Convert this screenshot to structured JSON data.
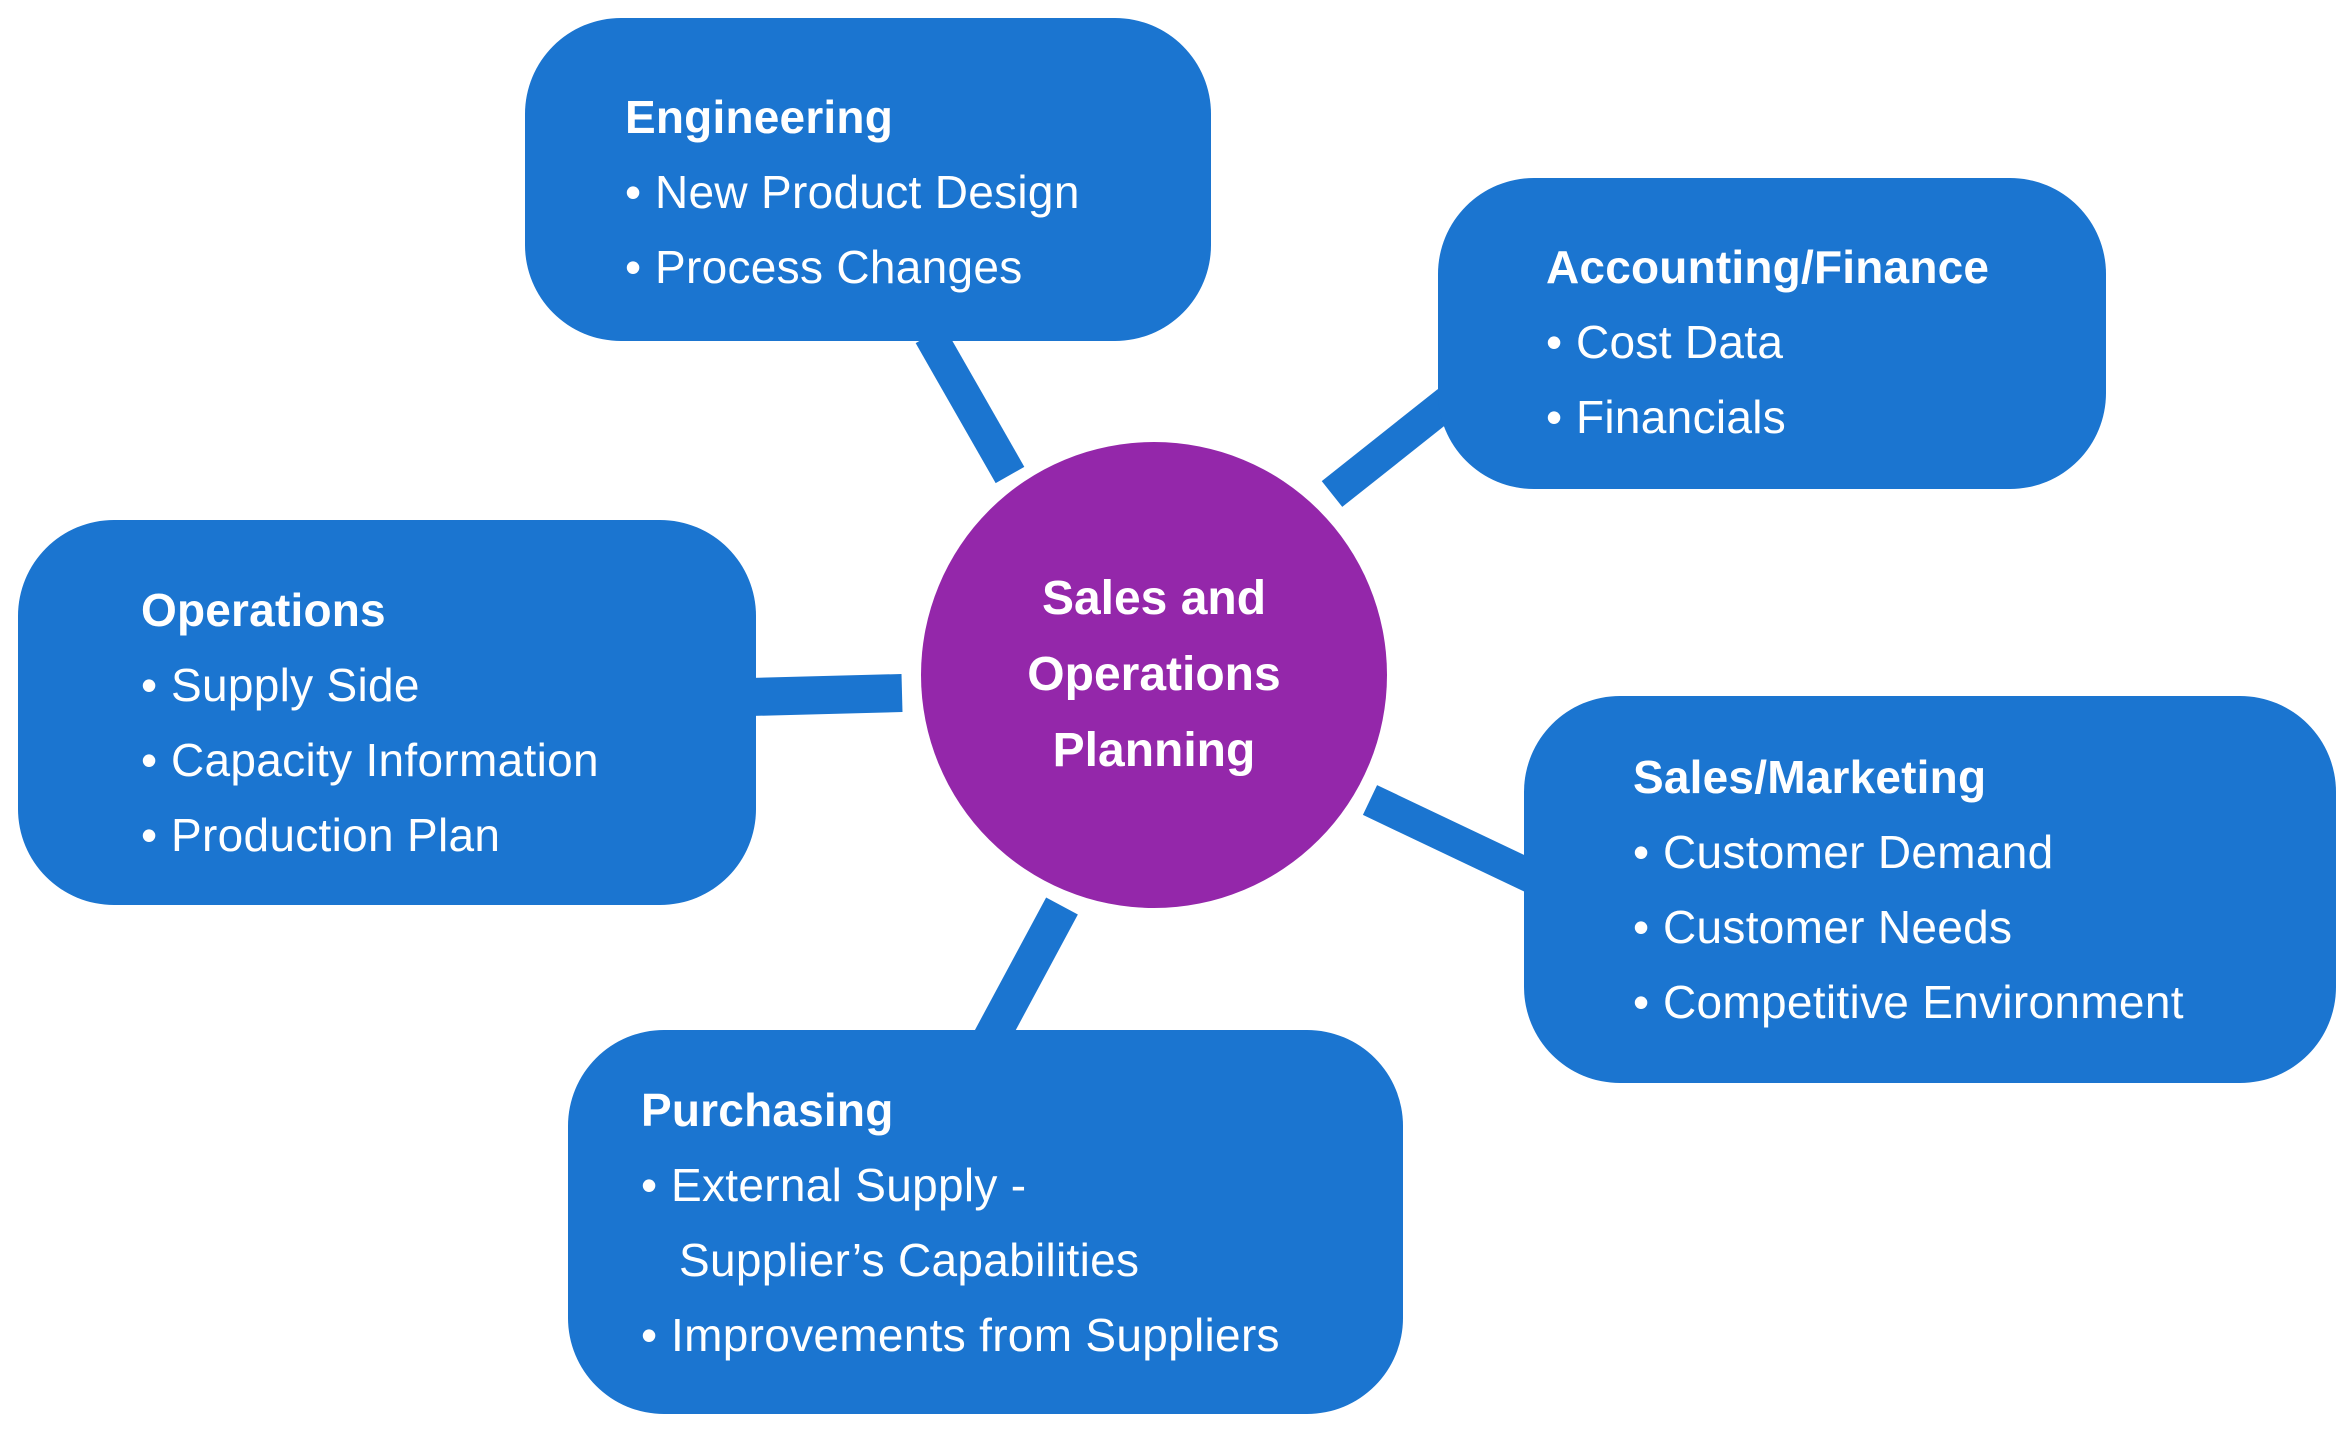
{
  "colors": {
    "box": "#1b75d0",
    "center": "#9427aa",
    "connector": "#1b75d0",
    "text": "#ffffff"
  },
  "center": {
    "title": "Sales and\nOperations\nPlanning"
  },
  "nodes": {
    "engineering": {
      "title": "Engineering",
      "items": [
        "New Product Design",
        "Process Changes"
      ]
    },
    "accounting": {
      "title": "Accounting/Finance",
      "items": [
        "Cost Data",
        "Financials"
      ]
    },
    "operations": {
      "title": "Operations",
      "items": [
        "Supply Side",
        "Capacity Information",
        "Production Plan"
      ]
    },
    "sales": {
      "title": "Sales/Marketing",
      "items": [
        "Customer Demand",
        "Customer Needs",
        "Competitive Environment"
      ]
    },
    "purchasing": {
      "title": "Purchasing",
      "items": [
        "External Supply -",
        "Supplier’s Capabilities",
        "Improvements from Suppliers"
      ]
    }
  },
  "bullet": "•"
}
